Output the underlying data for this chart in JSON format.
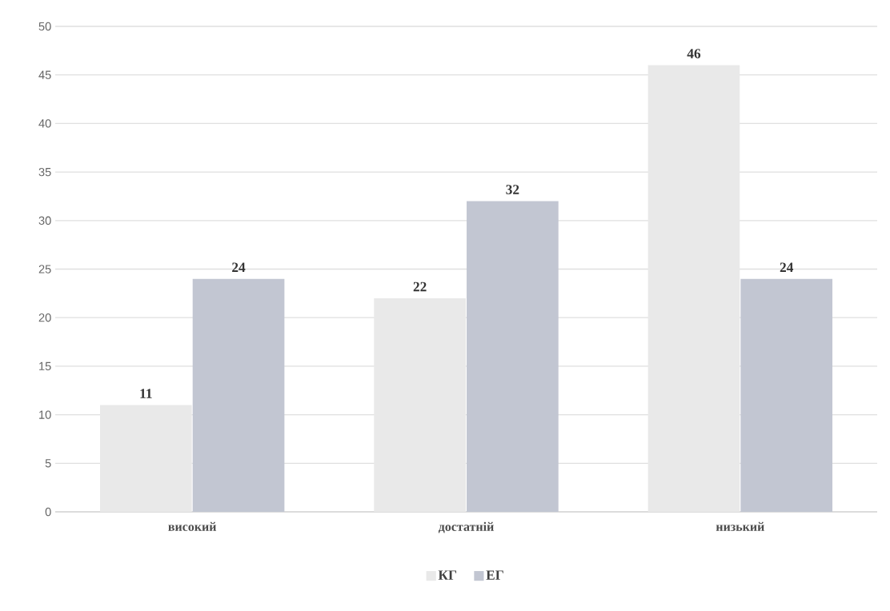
{
  "chart_data": {
    "type": "bar",
    "categories": [
      "високий",
      "достатній",
      "низький"
    ],
    "series": [
      {
        "name": "КГ",
        "color": "#e9e9e9",
        "values": [
          11,
          22,
          46
        ]
      },
      {
        "name": "ЕГ",
        "color": "#c2c6d2",
        "values": [
          24,
          32,
          24
        ]
      }
    ],
    "ylim": [
      0,
      50
    ],
    "yticks": [
      0,
      5,
      10,
      15,
      20,
      25,
      30,
      35,
      40,
      45,
      50
    ],
    "grid": "y",
    "legend": "bottom",
    "data_labels": true
  }
}
